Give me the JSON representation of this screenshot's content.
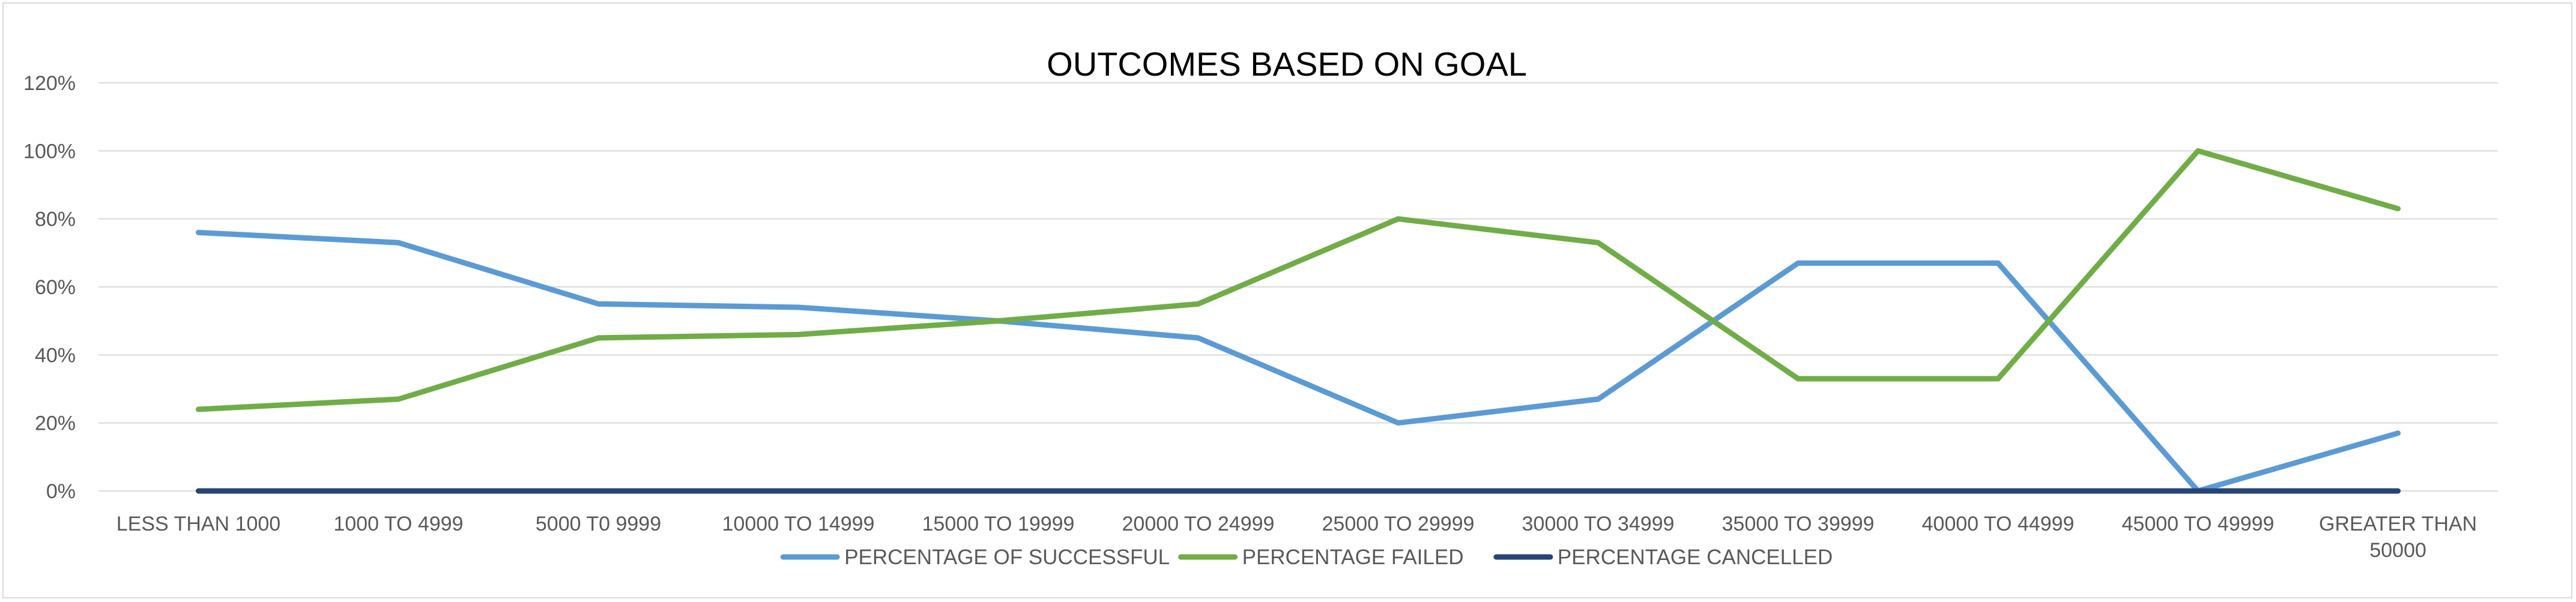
{
  "chart_data": {
    "type": "line",
    "title": "OUTCOMES BASED ON GOAL",
    "xlabel": "",
    "ylabel": "",
    "categories": [
      [
        "LESS THAN 1000"
      ],
      [
        "1000 TO 4999"
      ],
      [
        "5000 T0 9999"
      ],
      [
        "10000 TO 14999"
      ],
      [
        "15000 TO 19999"
      ],
      [
        "20000 TO 24999"
      ],
      [
        "25000 TO 29999"
      ],
      [
        "30000 TO 34999"
      ],
      [
        "35000 TO 39999"
      ],
      [
        "40000 TO 44999"
      ],
      [
        "45000 TO 49999"
      ],
      [
        "GREATER THAN",
        "50000"
      ]
    ],
    "ylim": [
      0,
      120
    ],
    "yticks": [
      "0%",
      "20%",
      "40%",
      "60%",
      "80%",
      "100%",
      "120%"
    ],
    "grid": true,
    "legend_position": "bottom",
    "series": [
      {
        "name": "PERCENTAGE OF SUCCESSFUL",
        "color": "#5b9bd5",
        "values": [
          76,
          73,
          55,
          54,
          50,
          45,
          20,
          27,
          67,
          67,
          0,
          17
        ]
      },
      {
        "name": "PERCENTAGE FAILED",
        "color": "#70ad47",
        "values": [
          24,
          27,
          45,
          46,
          50,
          55,
          80,
          73,
          33,
          33,
          100,
          83
        ]
      },
      {
        "name": "PERCENTAGE CANCELLED",
        "color": "#264478",
        "values": [
          0,
          0,
          0,
          0,
          0,
          0,
          0,
          0,
          0,
          0,
          0,
          0
        ]
      }
    ]
  }
}
